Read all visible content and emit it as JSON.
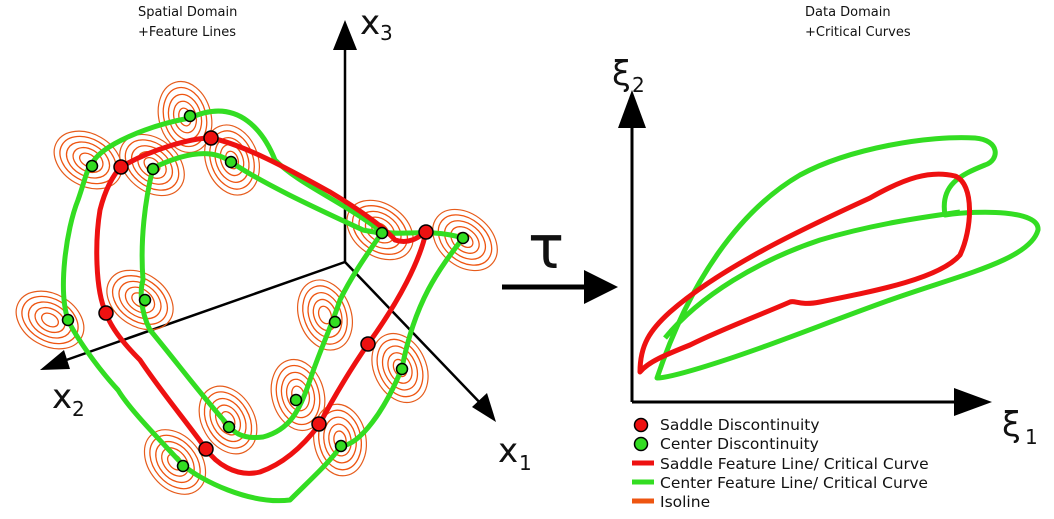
{
  "spatial": {
    "title_line1": "Spatial Domain",
    "title_line2": "+Feature Lines",
    "axis_x1": "x",
    "axis_x1_sub": "1",
    "axis_x2": "x",
    "axis_x2_sub": "2",
    "axis_x3": "x",
    "axis_x3_sub": "3"
  },
  "mapping": {
    "symbol": "τ"
  },
  "data_domain": {
    "title_line1": "Data Domain",
    "title_line2": "+Critical Curves",
    "axis_xi1": "ξ",
    "axis_xi1_sub": "1",
    "axis_xi2": "ξ",
    "axis_xi2_sub": "2"
  },
  "legend": {
    "saddle_disc": "Saddle Discontinuity",
    "center_disc": "Center Discontinuity",
    "saddle_line": "Saddle Feature Line/ Critical Curve",
    "center_line": "Center Feature Line/ Critical Curve",
    "isoline": "Isoline"
  },
  "colors": {
    "saddle": "#ee1111",
    "center": "#33dd22",
    "isoline": "#ee5511",
    "axis": "#000000"
  }
}
